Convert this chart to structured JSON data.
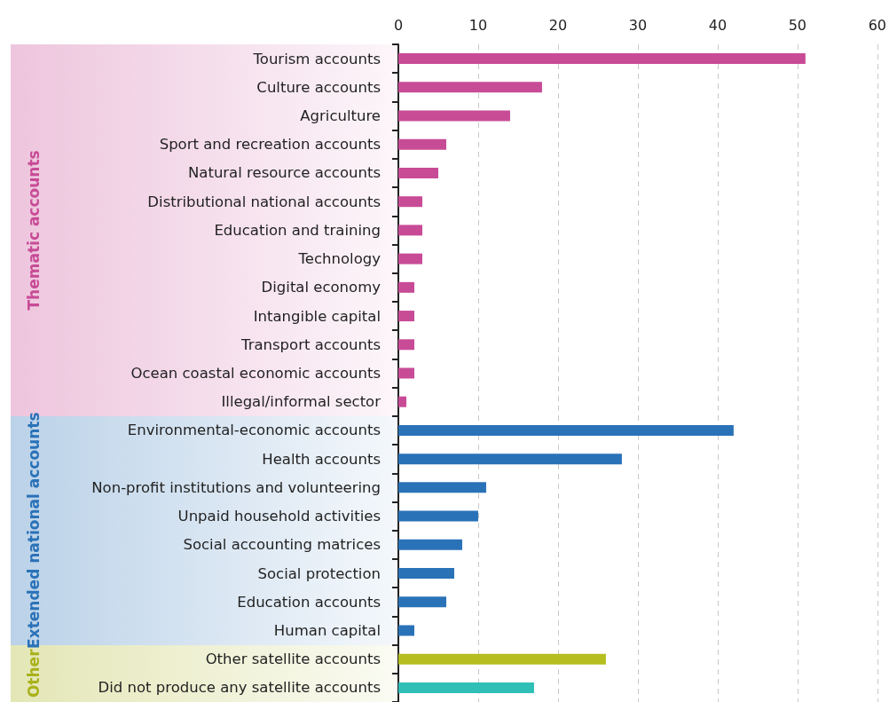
{
  "chart_data": {
    "type": "bar",
    "orientation": "horizontal",
    "categories": [
      "Tourism accounts",
      "Culture accounts",
      "Agriculture",
      "Sport and recreation accounts",
      "Natural resource accounts",
      "Distributional national accounts",
      "Education and training",
      "Technology",
      "Digital economy",
      "Intangible capital",
      "Transport accounts",
      "Ocean coastal economic accounts",
      "Illegal/informal sector",
      "Environmental-economic accounts",
      "Health accounts",
      "Non-profit institutions and volunteering",
      "Unpaid household activities",
      "Social accounting matrices",
      "Social protection",
      "Education accounts",
      "Human capital",
      "Other satellite accounts",
      "Did not produce any satellite accounts"
    ],
    "series": [
      {
        "name": "Thematic accounts",
        "color": "#c84b96",
        "values": [
          51,
          18,
          14,
          6,
          5,
          3,
          3,
          3,
          2,
          2,
          2,
          2,
          1,
          null,
          null,
          null,
          null,
          null,
          null,
          null,
          null,
          null,
          null
        ]
      },
      {
        "name": "Extended national accounts",
        "color": "#2a72b8",
        "values": [
          null,
          null,
          null,
          null,
          null,
          null,
          null,
          null,
          null,
          null,
          null,
          null,
          null,
          42,
          28,
          11,
          10,
          8,
          7,
          6,
          2,
          null,
          null
        ]
      },
      {
        "name": "Other",
        "color": "#a9b21a",
        "colors": [
          "#b5be1e",
          "#b5be1e",
          "#b5be1e",
          "#b5be1e",
          "#b5be1e",
          "#b5be1e",
          "#b5be1e",
          "#b5be1e",
          "#b5be1e",
          "#b5be1e",
          "#b5be1e",
          "#b5be1e",
          "#b5be1e",
          "#b5be1e",
          "#b5be1e",
          "#b5be1e",
          "#b5be1e",
          "#b5be1e",
          "#b5be1e",
          "#b5be1e",
          "#b5be1e",
          "#b5be1e",
          "#2fbfb7"
        ],
        "values": [
          null,
          null,
          null,
          null,
          null,
          null,
          null,
          null,
          null,
          null,
          null,
          null,
          null,
          null,
          null,
          null,
          null,
          null,
          null,
          null,
          null,
          26,
          17
        ]
      }
    ],
    "xlim": [
      0,
      60
    ],
    "xticks": [
      0,
      10,
      20,
      30,
      40,
      50,
      60
    ],
    "grid": "x"
  }
}
